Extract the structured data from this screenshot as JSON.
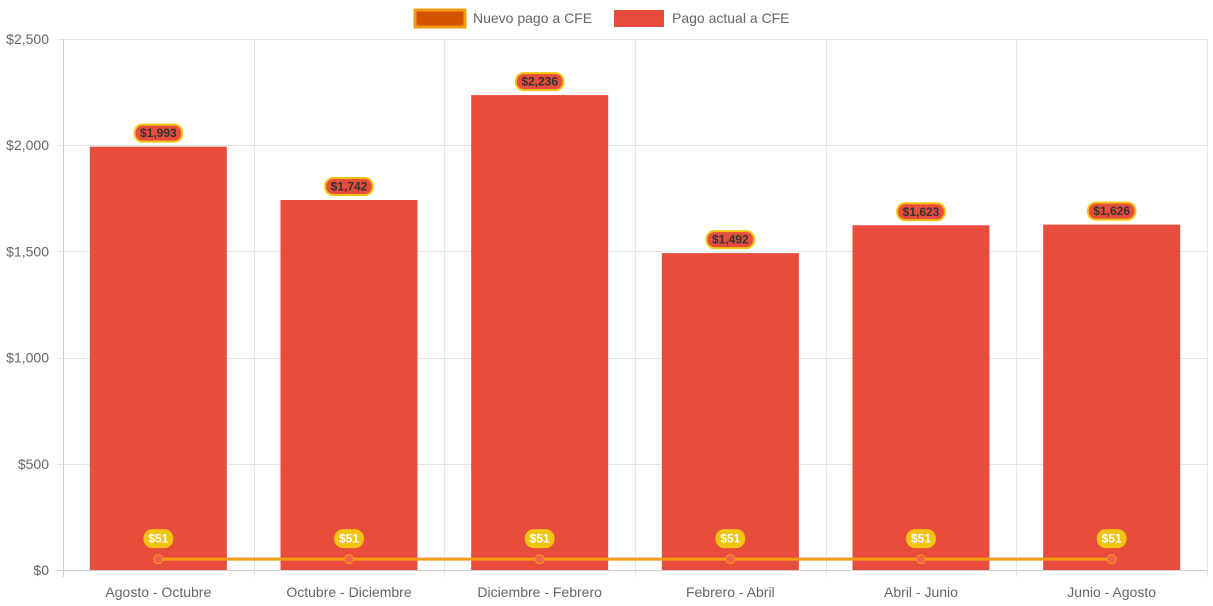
{
  "chart_data": {
    "type": "bar",
    "categories": [
      "Agosto - Octubre",
      "Octubre - Diciembre",
      "Diciembre - Febrero",
      "Febrero - Abril",
      "Abril - Junio",
      "Junio - Agosto"
    ],
    "series": [
      {
        "name": "Nuevo pago a CFE",
        "type": "line",
        "values": [
          51,
          51,
          51,
          51,
          51,
          51
        ],
        "labels": [
          "$51",
          "$51",
          "$51",
          "$51",
          "$51",
          "$51"
        ],
        "color": "#f39c12",
        "legend_fill": "#d35400"
      },
      {
        "name": "Pago actual a CFE",
        "type": "bar",
        "values": [
          1993,
          1742,
          2236,
          1492,
          1623,
          1626
        ],
        "labels": [
          "$1,993",
          "$1,742",
          "$2,236",
          "$1,492",
          "$1,623",
          "$1,626"
        ],
        "color": "#e74c3c"
      }
    ],
    "yticks": [
      "$0",
      "$500",
      "$1,000",
      "$1,500",
      "$2,000",
      "$2,500"
    ],
    "ylim": [
      0,
      2500
    ],
    "grid": true,
    "legend_position": "top-center",
    "label_badge_color": "#f1c40f"
  }
}
